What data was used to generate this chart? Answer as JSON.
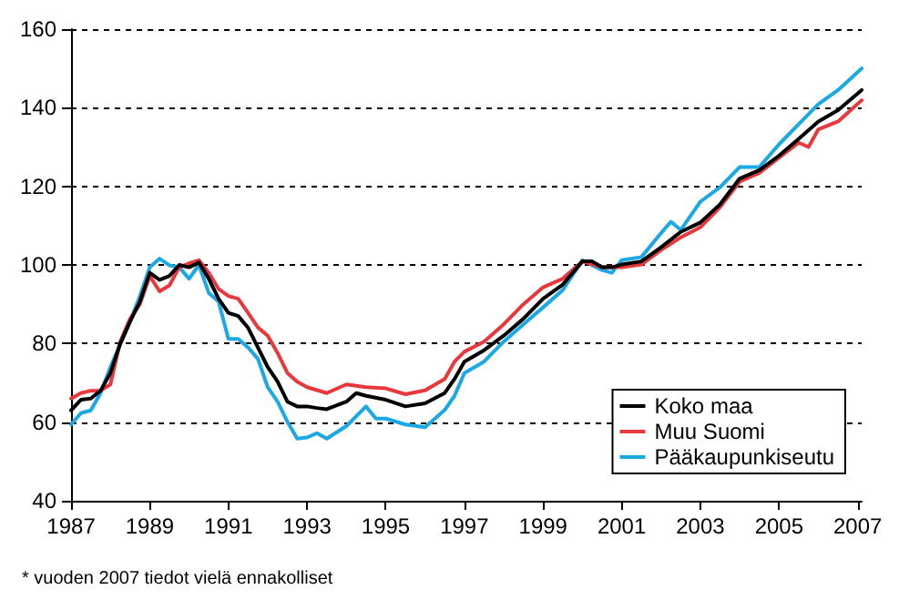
{
  "chart_data": {
    "type": "line",
    "xlim": [
      1987,
      2007.1
    ],
    "xticks": [
      1987,
      1989,
      1991,
      1993,
      1995,
      1997,
      1999,
      2001,
      2003,
      2005,
      2007
    ],
    "ylim": [
      40,
      160
    ],
    "yticks": [
      40,
      60,
      80,
      100,
      120,
      140,
      160
    ],
    "grid": "y",
    "legend": "bottom right",
    "marker": "none",
    "line_style": "solid",
    "annotations": [
      "* vuoden 2007 tiedot vielä ennakolliset"
    ],
    "series": [
      {
        "name": "Koko maa",
        "color": "#000000",
        "x": [
          1987,
          1987.25,
          1987.5,
          1987.75,
          1988,
          1988.25,
          1988.5,
          1988.75,
          1989,
          1989.25,
          1989.5,
          1989.75,
          1990,
          1990.25,
          1990.5,
          1990.75,
          1991,
          1991.25,
          1991.5,
          1991.75,
          1992,
          1992.25,
          1992.5,
          1992.75,
          1993,
          1993.25,
          1993.5,
          1994,
          1994.25,
          1994.5,
          1995,
          1995.5,
          1996,
          1996.5,
          1996.75,
          1997,
          1997.5,
          1998,
          1998.5,
          1999,
          1999.5,
          2000,
          2000.25,
          2000.5,
          2000.75,
          2001,
          2001.5,
          2002,
          2002.5,
          2003,
          2003.5,
          2004,
          2004.5,
          2005,
          2005.5,
          2006,
          2006.5,
          2007.1
        ],
        "values": [
          63,
          65.7,
          66,
          68,
          72.5,
          80,
          85.6,
          90.7,
          98,
          96.2,
          97.2,
          100,
          99.4,
          100.6,
          96.5,
          91.4,
          87.8,
          87,
          84,
          79,
          74,
          70.3,
          65.2,
          64,
          64,
          63.6,
          63.3,
          65.2,
          67.4,
          66.7,
          65.7,
          64,
          64.8,
          67.4,
          71,
          75.4,
          78.3,
          82,
          86.3,
          91.4,
          95,
          100.9,
          100.9,
          99.4,
          99.4,
          100.1,
          100.9,
          104.5,
          108.4,
          110.8,
          115.4,
          122,
          124.1,
          127.8,
          132.1,
          136.5,
          139.4,
          144.5
        ]
      },
      {
        "name": "Muu Suomi",
        "color": "#e8383d",
        "x": [
          1987,
          1987.25,
          1987.5,
          1987.75,
          1988,
          1988.25,
          1988.5,
          1988.75,
          1989,
          1989.25,
          1989.5,
          1989.75,
          1990,
          1990.25,
          1990.5,
          1990.75,
          1991,
          1991.25,
          1991.5,
          1991.75,
          1992,
          1992.25,
          1992.5,
          1992.75,
          1993,
          1993.5,
          1994,
          1994.5,
          1995,
          1995.5,
          1996,
          1996.5,
          1996.75,
          1997,
          1997.5,
          1998,
          1998.5,
          1999,
          1999.5,
          2000,
          2000.5,
          2001,
          2001.5,
          2002,
          2002.5,
          2003,
          2003.5,
          2004,
          2004.5,
          2005,
          2005.5,
          2005.75,
          2006,
          2006.5,
          2007.1
        ],
        "values": [
          66,
          67.4,
          68,
          68,
          69.6,
          80.5,
          86.3,
          90,
          97.2,
          93.3,
          94.8,
          99.4,
          100.4,
          101.2,
          98,
          93.9,
          92.1,
          91.4,
          87.8,
          84.1,
          82,
          77.6,
          72.5,
          70.3,
          68.9,
          67.4,
          69.6,
          68.9,
          68.6,
          67.1,
          68.1,
          71,
          75.4,
          77.9,
          80.5,
          84.9,
          90,
          94.3,
          96.5,
          100.9,
          99.4,
          99.4,
          100.1,
          103.8,
          107,
          109.6,
          114.7,
          121.2,
          123.4,
          127.3,
          131.1,
          130,
          134.5,
          136.5,
          141.9
        ]
      },
      {
        "name": "Pääkaupunkiseutu",
        "color": "#1ba9e6",
        "x": [
          1987,
          1987.25,
          1987.5,
          1987.75,
          1988,
          1988.25,
          1988.5,
          1988.75,
          1989,
          1989.25,
          1989.5,
          1989.75,
          1990,
          1990.25,
          1990.5,
          1990.75,
          1991,
          1991.25,
          1991.5,
          1991.75,
          1992,
          1992.25,
          1992.5,
          1992.75,
          1993,
          1993.25,
          1993.5,
          1994,
          1994.5,
          1994.75,
          1995,
          1995.5,
          1996,
          1996.5,
          1996.75,
          1997,
          1997.5,
          1998,
          1998.5,
          1999,
          1999.5,
          2000,
          2000.5,
          2000.75,
          2001,
          2001.5,
          2002,
          2002.25,
          2002.5,
          2003,
          2003.5,
          2004,
          2004.5,
          2005,
          2005.5,
          2006,
          2006.5,
          2007.1
        ],
        "values": [
          59.4,
          62.3,
          63,
          67.4,
          74,
          79.8,
          85.6,
          92.1,
          99.4,
          101.6,
          99.9,
          99.4,
          96.5,
          100,
          92.9,
          90.7,
          81.2,
          81.2,
          79,
          76.1,
          68.9,
          65.2,
          60.1,
          55.8,
          56.1,
          57.2,
          55.8,
          59,
          64,
          60.9,
          60.9,
          59.4,
          58.7,
          63.1,
          66.7,
          72.5,
          75.4,
          80.5,
          84.9,
          89.2,
          93.6,
          101.2,
          98.7,
          98,
          101.2,
          102,
          108.1,
          111,
          108.9,
          116.1,
          119.8,
          124.9,
          124.9,
          130.7,
          135.8,
          140.9,
          144.5,
          150
        ]
      }
    ]
  }
}
